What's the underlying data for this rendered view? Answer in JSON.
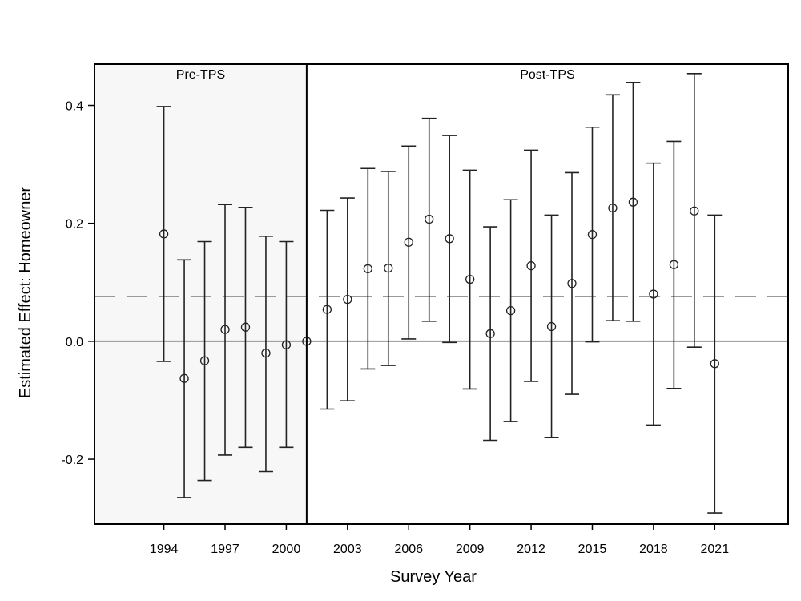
{
  "chart_data": {
    "type": "scatter",
    "title": "",
    "xlabel": "Survey Year",
    "ylabel": "Estimated Effect: Homeowner",
    "xlim": [
      1990.6,
      2024.6
    ],
    "ylim": [
      -0.31,
      0.47
    ],
    "xticks": [
      "1994",
      "1997",
      "2000",
      "2003",
      "2006",
      "2009",
      "2012",
      "2015",
      "2018",
      "2021"
    ],
    "yticks": [
      "-0.2",
      "0.0",
      "0.2",
      "0.4"
    ],
    "grid": false,
    "regions": [
      {
        "label": "Pre-TPS",
        "from": 1990.6,
        "to": 2001,
        "fill": "#f7f7f7"
      },
      {
        "label": "Post-TPS",
        "from": 2001,
        "to": 2024.6,
        "fill": "#ffffff"
      }
    ],
    "reference_lines": [
      {
        "y": 0.0,
        "style": "solid",
        "color": "#999999"
      },
      {
        "y": 0.076,
        "style": "dashed",
        "color": "#999999"
      }
    ],
    "series": [
      {
        "points": [
          {
            "x": 1994,
            "y": 0.182,
            "lo": -0.034,
            "hi": 0.398
          },
          {
            "x": 1995,
            "y": -0.063,
            "lo": -0.265,
            "hi": 0.138
          },
          {
            "x": 1996,
            "y": -0.033,
            "lo": -0.236,
            "hi": 0.169
          },
          {
            "x": 1997,
            "y": 0.02,
            "lo": -0.193,
            "hi": 0.232
          },
          {
            "x": 1998,
            "y": 0.024,
            "lo": -0.18,
            "hi": 0.227
          },
          {
            "x": 1999,
            "y": -0.02,
            "lo": -0.221,
            "hi": 0.178
          },
          {
            "x": 2000,
            "y": -0.006,
            "lo": -0.18,
            "hi": 0.169
          },
          {
            "x": 2001,
            "y": 0.0
          },
          {
            "x": 2002,
            "y": 0.054,
            "lo": -0.115,
            "hi": 0.222
          },
          {
            "x": 2003,
            "y": 0.071,
            "lo": -0.101,
            "hi": 0.243
          },
          {
            "x": 2004,
            "y": 0.123,
            "lo": -0.047,
            "hi": 0.293
          },
          {
            "x": 2005,
            "y": 0.124,
            "lo": -0.041,
            "hi": 0.288
          },
          {
            "x": 2006,
            "y": 0.168,
            "lo": 0.004,
            "hi": 0.331
          },
          {
            "x": 2007,
            "y": 0.207,
            "lo": 0.034,
            "hi": 0.378
          },
          {
            "x": 2008,
            "y": 0.174,
            "lo": -0.002,
            "hi": 0.349
          },
          {
            "x": 2009,
            "y": 0.105,
            "lo": -0.081,
            "hi": 0.29
          },
          {
            "x": 2010,
            "y": 0.013,
            "lo": -0.168,
            "hi": 0.194
          },
          {
            "x": 2011,
            "y": 0.052,
            "lo": -0.136,
            "hi": 0.24
          },
          {
            "x": 2012,
            "y": 0.128,
            "lo": -0.068,
            "hi": 0.324
          },
          {
            "x": 2013,
            "y": 0.025,
            "lo": -0.163,
            "hi": 0.214
          },
          {
            "x": 2014,
            "y": 0.098,
            "lo": -0.09,
            "hi": 0.286
          },
          {
            "x": 2015,
            "y": 0.181,
            "lo": -0.001,
            "hi": 0.363
          },
          {
            "x": 2016,
            "y": 0.226,
            "lo": 0.035,
            "hi": 0.418
          },
          {
            "x": 2017,
            "y": 0.236,
            "lo": 0.034,
            "hi": 0.439
          },
          {
            "x": 2018,
            "y": 0.08,
            "lo": -0.142,
            "hi": 0.302
          },
          {
            "x": 2019,
            "y": 0.13,
            "lo": -0.08,
            "hi": 0.339
          },
          {
            "x": 2020,
            "y": 0.221,
            "lo": -0.01,
            "hi": 0.454
          },
          {
            "x": 2021,
            "y": -0.038,
            "lo": -0.291,
            "hi": 0.214
          }
        ]
      }
    ]
  }
}
